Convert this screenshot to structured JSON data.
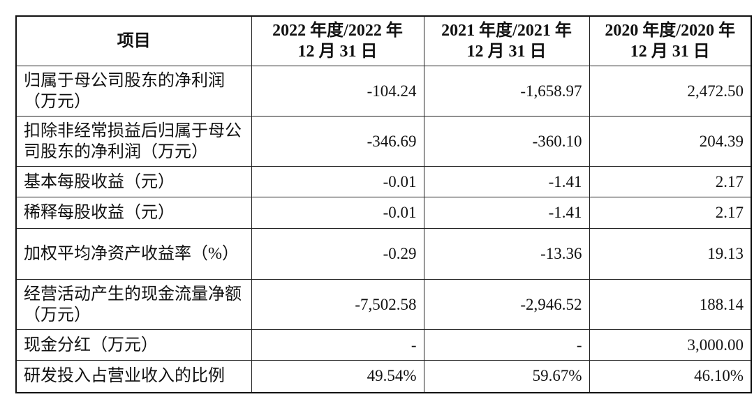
{
  "table": {
    "header": [
      [
        "项目"
      ],
      [
        "2022 年度/2022 年",
        "12 月 31 日"
      ],
      [
        "2021 年度/2021 年",
        "12 月 31 日"
      ],
      [
        "2020 年度/2020 年",
        "12 月 31 日"
      ]
    ],
    "rows": [
      [
        "归属于母公司股东的净利润（万元）",
        "-104.24",
        "-1,658.97",
        "2,472.50"
      ],
      [
        "扣除非经常损益后归属于母公司股东的净利润（万元）",
        "-346.69",
        "-360.10",
        "204.39"
      ],
      [
        "基本每股收益（元）",
        "-0.01",
        "-1.41",
        "2.17"
      ],
      [
        "稀释每股收益（元）",
        "-0.01",
        "-1.41",
        "2.17"
      ],
      [
        "加权平均净资产收益率（%）",
        "-0.29",
        "-13.36",
        "19.13"
      ],
      [
        "经营活动产生的现金流量净额（万元）",
        "-7,502.58",
        "-2,946.52",
        "188.14"
      ],
      [
        "现金分红（万元）",
        "-",
        "-",
        "3,000.00"
      ],
      [
        "研发投入占营业收入的比例",
        "49.54%",
        "59.67%",
        "46.10%"
      ]
    ]
  }
}
